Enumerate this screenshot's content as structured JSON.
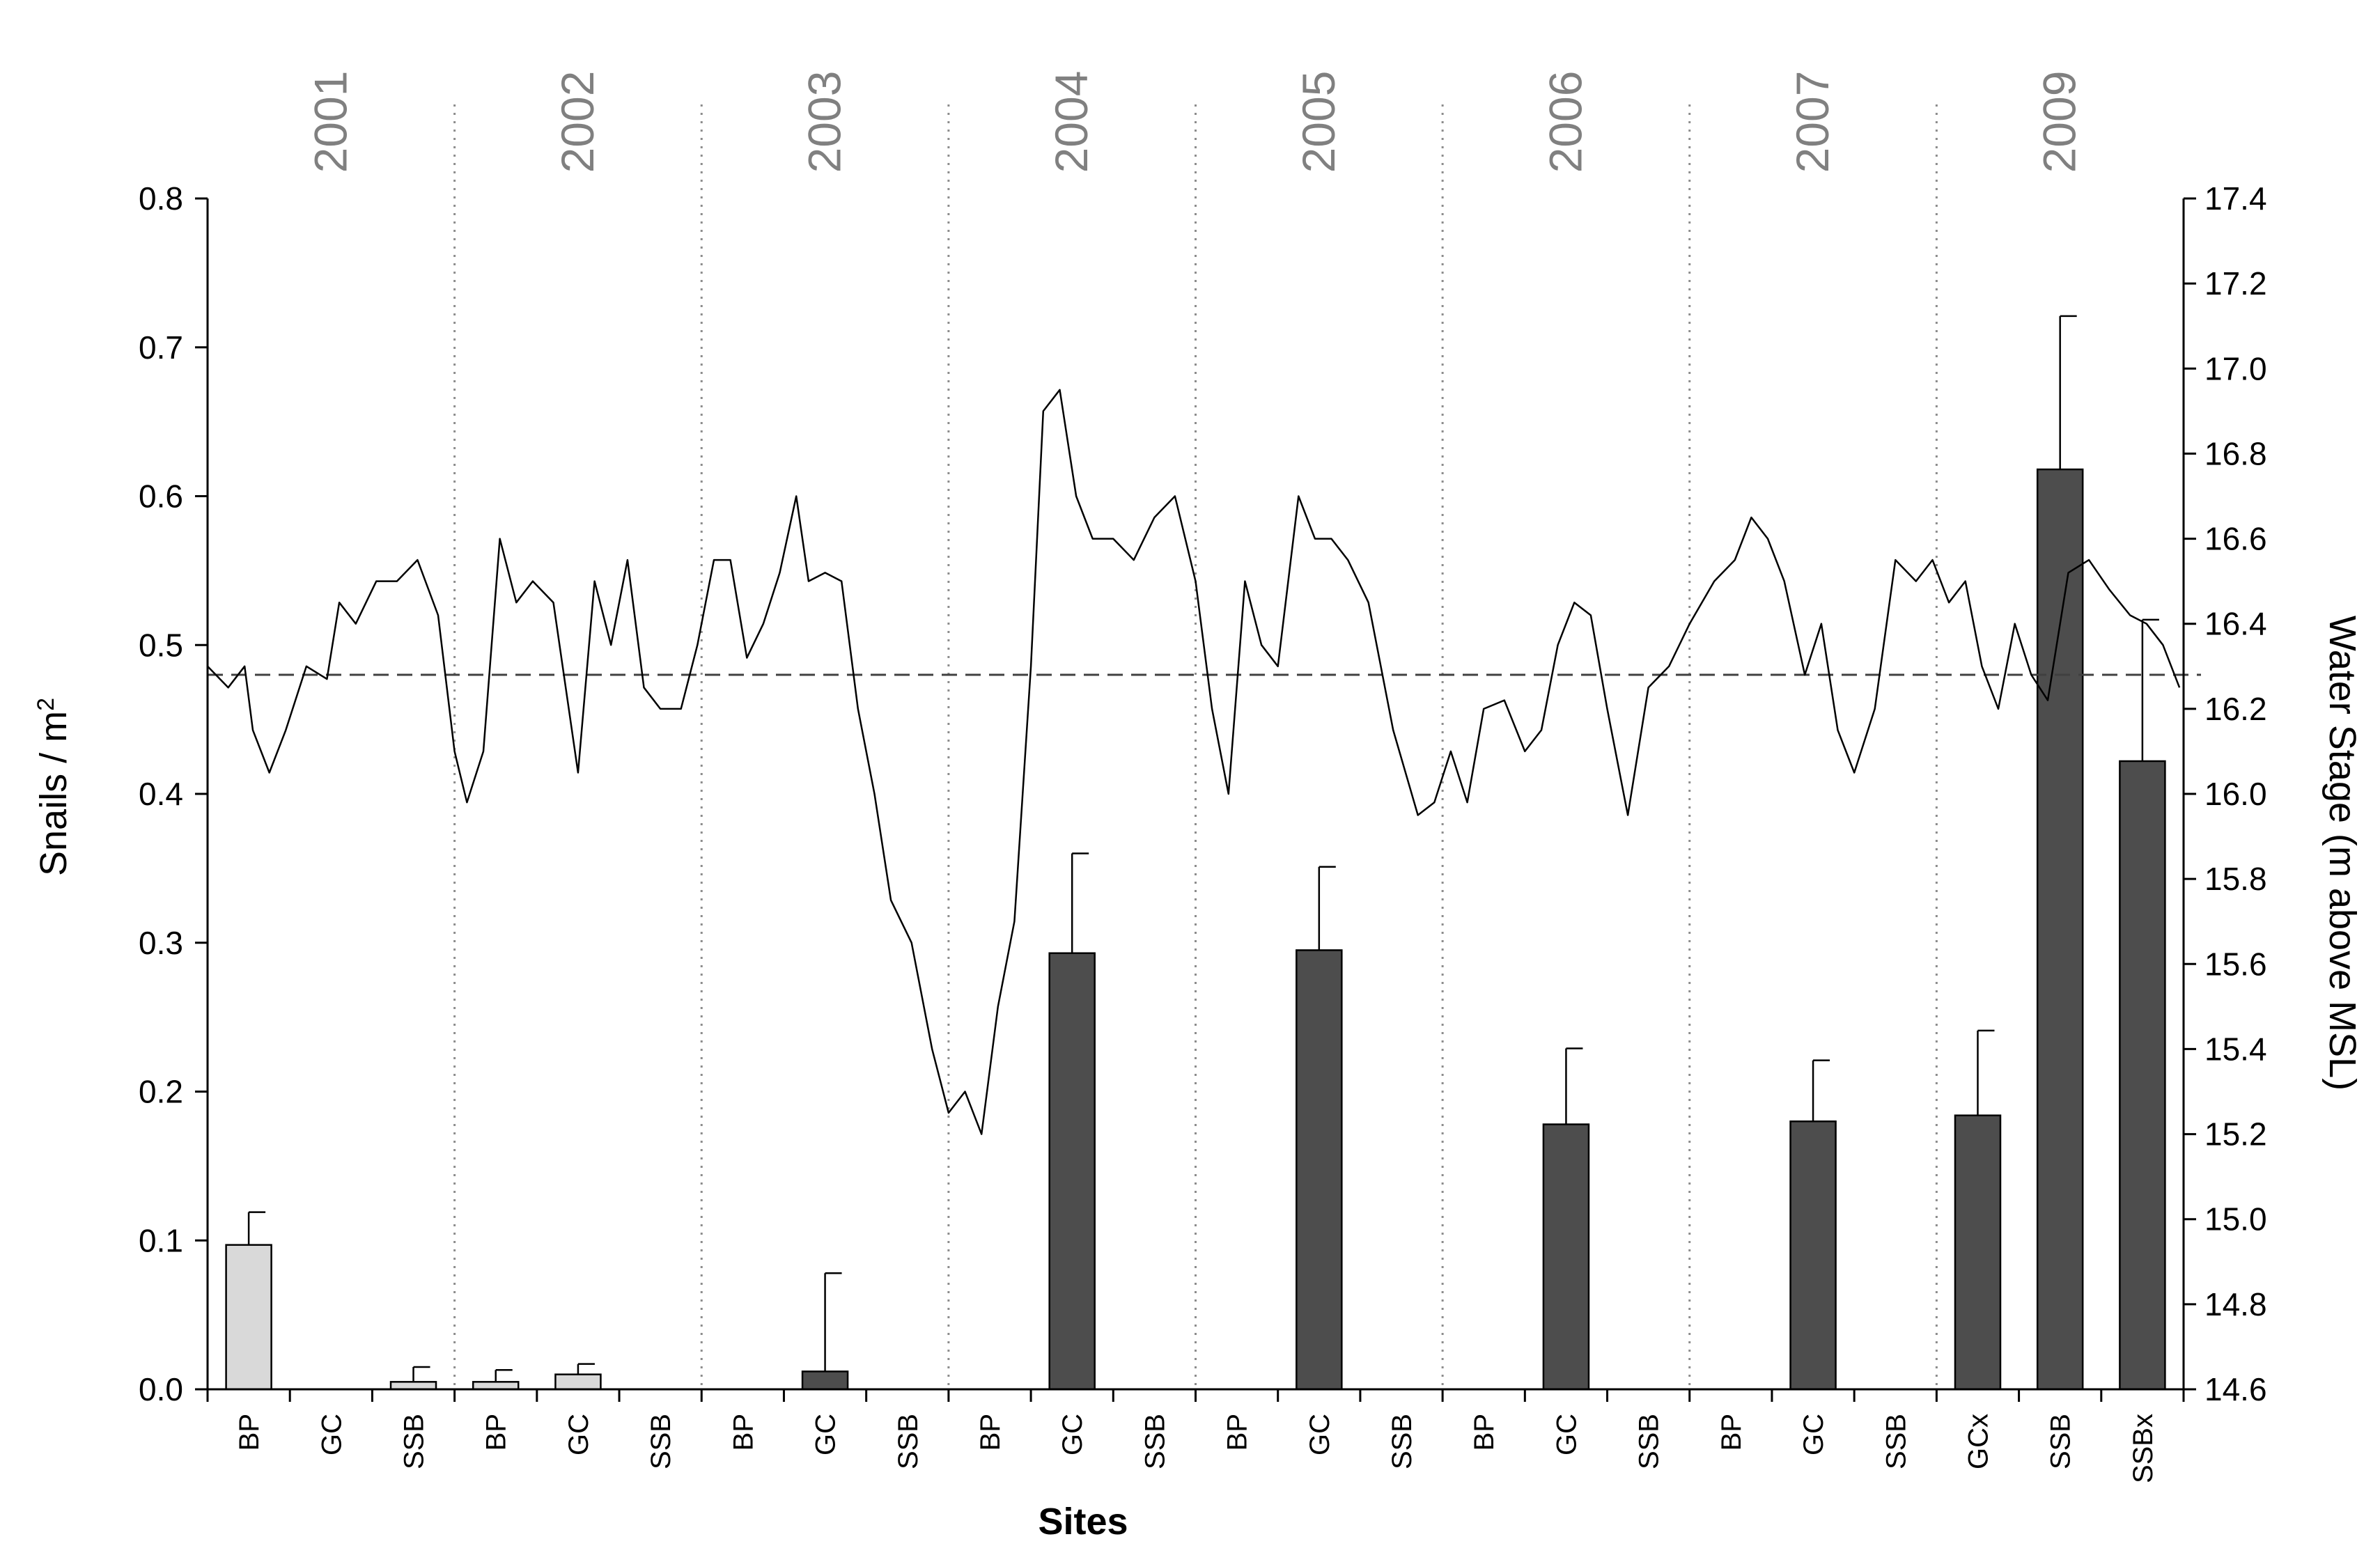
{
  "chart_data": {
    "type": "bar",
    "xlabel": "Sites",
    "ylabel": "Snails / m",
    "ylabel_sup": "2",
    "y2label": "Water Stage (m above MSL)",
    "ylim": [
      0,
      0.8
    ],
    "yticks": [
      "0.0",
      "0.1",
      "0.2",
      "0.3",
      "0.4",
      "0.5",
      "0.6",
      "0.7",
      "0.8"
    ],
    "y2lim": [
      14.6,
      17.4
    ],
    "y2ticks": [
      "14.6",
      "14.8",
      "15.0",
      "15.2",
      "15.4",
      "15.6",
      "15.8",
      "16.0",
      "16.2",
      "16.4",
      "16.6",
      "16.8",
      "17.0",
      "17.2",
      "17.4"
    ],
    "reference_line_y2": 16.28,
    "colors": {
      "light_bar": "#d9d9d9",
      "dark_bar": "#4d4d4d",
      "line": "#000000",
      "year": "#808080"
    },
    "years": [
      {
        "label": "2001",
        "sites": [
          0,
          1,
          2
        ]
      },
      {
        "label": "2002",
        "sites": [
          3,
          4,
          5
        ]
      },
      {
        "label": "2003",
        "sites": [
          6,
          7,
          8
        ]
      },
      {
        "label": "2004",
        "sites": [
          9,
          10,
          11
        ]
      },
      {
        "label": "2005",
        "sites": [
          12,
          13,
          14
        ]
      },
      {
        "label": "2006",
        "sites": [
          15,
          16,
          17
        ]
      },
      {
        "label": "2007",
        "sites": [
          18,
          19,
          20
        ]
      },
      {
        "label": "2009",
        "sites": [
          21,
          22,
          23
        ]
      }
    ],
    "categories": [
      "BP",
      "GC",
      "SSB",
      "BP",
      "GC",
      "SSB",
      "BP",
      "GC",
      "SSB",
      "BP",
      "GC",
      "SSB",
      "BP",
      "GC",
      "SSB",
      "BP",
      "GC",
      "SSB",
      "BP",
      "GC",
      "SSB",
      "GCx",
      "SSB",
      "SSBx"
    ],
    "series": [
      {
        "values": [
          0.097,
          0,
          0.005,
          0.005,
          0.01,
          0,
          0,
          0.012,
          0,
          0,
          0.293,
          0,
          0,
          0.295,
          0,
          0,
          0.178,
          0,
          0,
          0.18,
          0,
          0.184,
          0.618,
          0.422
        ],
        "errors": [
          0.022,
          0,
          0.01,
          0.008,
          0.007,
          0,
          0,
          0.066,
          0,
          0,
          0.067,
          0,
          0,
          0.056,
          0,
          0,
          0.051,
          0,
          0,
          0.041,
          0,
          0.057,
          0.103,
          0.095
        ],
        "colors": [
          "light",
          "light",
          "light",
          "light",
          "light",
          "light",
          "dark",
          "dark",
          "dark",
          "dark",
          "dark",
          "dark",
          "dark",
          "dark",
          "dark",
          "dark",
          "dark",
          "dark",
          "dark",
          "dark",
          "dark",
          "dark",
          "dark",
          "dark"
        ]
      },
      {
        "type": "line",
        "axis": "right",
        "x": [
          0,
          0.25,
          0.45,
          0.55,
          0.75,
          0.95,
          1.2,
          1.45,
          1.6,
          1.8,
          2.05,
          2.3,
          2.55,
          2.8,
          3.0,
          3.15,
          3.35,
          3.55,
          3.75,
          3.95,
          4.2,
          4.5,
          4.7,
          4.9,
          5.1,
          5.3,
          5.5,
          5.75,
          5.95,
          6.15,
          6.35,
          6.55,
          6.75,
          6.95,
          7.15,
          7.3,
          7.5,
          7.7,
          7.9,
          8.1,
          8.3,
          8.55,
          8.8,
          9.0,
          9.2,
          9.4,
          9.6,
          9.8,
          10.0,
          10.15,
          10.35,
          10.55,
          10.75,
          11.0,
          11.25,
          11.5,
          11.75,
          12.0,
          12.2,
          12.4,
          12.6,
          12.8,
          13.0,
          13.25,
          13.45,
          13.65,
          13.85,
          14.1,
          14.4,
          14.7,
          14.9,
          15.1,
          15.3,
          15.5,
          15.75,
          16.0,
          16.2,
          16.4,
          16.6,
          16.8,
          17.0,
          17.25,
          17.5,
          17.75,
          18.0,
          18.3,
          18.55,
          18.75,
          18.95,
          19.15,
          19.4,
          19.6,
          19.8,
          20.0,
          20.25,
          20.5,
          20.75,
          20.95,
          21.15,
          21.35,
          21.55,
          21.75,
          21.95,
          22.15,
          22.35,
          22.6,
          22.85,
          23.1,
          23.35,
          23.55,
          23.75,
          23.95
        ],
        "y": [
          16.3,
          16.25,
          16.3,
          16.15,
          16.05,
          16.15,
          16.3,
          16.27,
          16.45,
          16.4,
          16.5,
          16.5,
          16.55,
          16.42,
          16.1,
          15.98,
          16.1,
          16.6,
          16.45,
          16.5,
          16.45,
          16.05,
          16.5,
          16.35,
          16.55,
          16.25,
          16.2,
          16.2,
          16.35,
          16.55,
          16.55,
          16.32,
          16.4,
          16.52,
          16.7,
          16.5,
          16.52,
          16.5,
          16.2,
          16.0,
          15.75,
          15.65,
          15.4,
          15.25,
          15.3,
          15.2,
          15.5,
          15.7,
          16.3,
          16.9,
          16.95,
          16.7,
          16.6,
          16.6,
          16.55,
          16.65,
          16.7,
          16.5,
          16.2,
          16.0,
          16.5,
          16.35,
          16.3,
          16.7,
          16.6,
          16.6,
          16.55,
          16.45,
          16.15,
          15.95,
          15.98,
          16.1,
          15.98,
          16.2,
          16.22,
          16.1,
          16.15,
          16.35,
          16.45,
          16.42,
          16.2,
          15.95,
          16.25,
          16.3,
          16.4,
          16.5,
          16.55,
          16.65,
          16.6,
          16.5,
          16.28,
          16.4,
          16.15,
          16.05,
          16.2,
          16.55,
          16.5,
          16.55,
          16.45,
          16.5,
          16.3,
          16.2,
          16.4,
          16.28,
          16.22,
          16.52,
          16.55,
          16.48,
          16.42,
          16.4,
          16.35,
          16.25
        ]
      }
    ]
  }
}
